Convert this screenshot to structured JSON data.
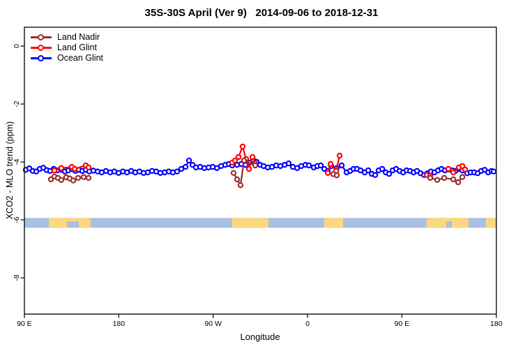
{
  "title": "35S-30S April (Ver 9)   2014-09-06 to 2018-12-31",
  "chart_data": {
    "type": "line",
    "title": "35S-30S April (Ver 9)   2014-09-06 to 2018-12-31",
    "xlabel": "Longitude",
    "ylabel": "XCO2 - MLO trend (ppm)",
    "marker": "open-circle",
    "grid": false,
    "legend_position": "top-left-inside",
    "x_axis": {
      "description": "longitude axis starting at 90E wrapping eastward to 180, 450 degrees total",
      "domain_deg": [
        0,
        450
      ],
      "ticks": [
        {
          "deg": 0,
          "label": "90 E"
        },
        {
          "deg": 90,
          "label": "180"
        },
        {
          "deg": 180,
          "label": "90 W"
        },
        {
          "deg": 270,
          "label": "0"
        },
        {
          "deg": 360,
          "label": "90 E"
        },
        {
          "deg": 450,
          "label": "180"
        }
      ]
    },
    "y_axis": {
      "domain": [
        -9.25,
        0.65
      ],
      "ticks": [
        {
          "value": 0,
          "label": "0"
        },
        {
          "value": -2,
          "label": "-2"
        },
        {
          "value": -4,
          "label": "-4"
        },
        {
          "value": -6,
          "label": "-6"
        },
        {
          "value": -8,
          "label": "-8"
        }
      ]
    },
    "legend": [
      {
        "label": "Land Nadir",
        "color": "#9B2D2D"
      },
      {
        "label": "Land Glint",
        "color": "#FF0000"
      },
      {
        "label": "Ocean Glint",
        "color": "#0000FF"
      }
    ],
    "land_band": {
      "ocean_color": "#A9C0E4",
      "land_color": "#FBD77F",
      "y_top": -5.93,
      "y_bottom": -6.27,
      "land_segments_deg": [
        [
          23.3,
          63.2
        ],
        [
          198.1,
          232.7
        ],
        [
          285.9,
          303.9
        ],
        [
          383.6,
          423.5
        ],
        [
          440.1,
          450
        ]
      ],
      "ocean_notches_deg": [
        [
          40.6,
          51.9
        ],
        [
          402.3,
          407.6
        ]
      ]
    },
    "series": [
      {
        "name": "Land Nadir",
        "color": "#9B2D2D",
        "segments": [
          [
            [
              25.3,
              -4.6
            ],
            [
              28.6,
              -4.5
            ],
            [
              31.9,
              -4.55
            ],
            [
              35.2,
              -4.62
            ],
            [
              39.9,
              -4.53
            ],
            [
              43.2,
              -4.57
            ],
            [
              46.6,
              -4.64
            ],
            [
              51.2,
              -4.55
            ],
            [
              56.5,
              -4.52
            ],
            [
              61.2,
              -4.55
            ]
          ],
          [
            [
              199.5,
              -4.38
            ],
            [
              202.8,
              -4.6
            ],
            [
              206.1,
              -4.8
            ],
            [
              209.5,
              -3.95
            ],
            [
              220.1,
              -4.12
            ]
          ],
          [
            [
              294.6,
              -4.42
            ],
            [
              297.9,
              -4.46
            ]
          ],
          [
            [
              387.0,
              -4.55
            ],
            [
              393.7,
              -4.62
            ],
            [
              400.3,
              -4.55
            ],
            [
              409.0,
              -4.6
            ],
            [
              413.6,
              -4.7
            ],
            [
              417.6,
              -4.52
            ]
          ]
        ]
      },
      {
        "name": "Land Glint",
        "color": "#FF0000",
        "segments": [
          [
            [
              28.6,
              -4.29
            ],
            [
              35.2,
              -4.21
            ],
            [
              45.2,
              -4.17
            ],
            [
              47.9,
              -4.24
            ],
            [
              58.5,
              -4.12
            ],
            [
              61.2,
              -4.19
            ]
          ],
          [
            [
              198.2,
              -4.02
            ],
            [
              200.8,
              -3.95
            ],
            [
              204.2,
              -3.83
            ],
            [
              208.1,
              -3.47
            ],
            [
              211.5,
              -3.9
            ],
            [
              214.1,
              -4.24
            ],
            [
              217.5,
              -3.83
            ],
            [
              220.1,
              -4.05
            ]
          ],
          [
            [
              289.3,
              -4.38
            ],
            [
              292.0,
              -4.07
            ],
            [
              297.3,
              -4.31
            ],
            [
              300.6,
              -3.78
            ]
          ],
          [
            [
              383.7,
              -4.45
            ],
            [
              387.0,
              -4.48
            ]
          ],
          [
            [
              404.3,
              -4.24
            ],
            [
              409.0,
              -4.36
            ],
            [
              414.3,
              -4.19
            ],
            [
              417.6,
              -4.14
            ],
            [
              420.3,
              -4.26
            ]
          ]
        ]
      },
      {
        "name": "Ocean Glint",
        "color": "#0000FF",
        "segments": [
          [
            [
              1.3,
              -4.27
            ],
            [
              4.7,
              -4.22
            ],
            [
              8,
              -4.31
            ],
            [
              11.3,
              -4.33
            ],
            [
              14.6,
              -4.24
            ],
            [
              18,
              -4.2
            ],
            [
              21.3,
              -4.28
            ],
            [
              24.6,
              -4.31
            ],
            [
              27.9,
              -4.24
            ],
            [
              31.3,
              -4.29
            ],
            [
              35.2,
              -4.27
            ],
            [
              38.6,
              -4.33
            ],
            [
              41.9,
              -4.29
            ],
            [
              45.2,
              -4.24
            ],
            [
              48.6,
              -4.31
            ],
            [
              51.9,
              -4.27
            ],
            [
              55.2,
              -4.31
            ],
            [
              58.5,
              -4.27
            ],
            [
              61.9,
              -4.33
            ],
            [
              65.8,
              -4.3
            ],
            [
              69.8,
              -4.33
            ],
            [
              73.8,
              -4.36
            ],
            [
              77.8,
              -4.31
            ],
            [
              81.8,
              -4.36
            ],
            [
              85.8,
              -4.33
            ],
            [
              89.8,
              -4.38
            ],
            [
              93.8,
              -4.33
            ],
            [
              97.8,
              -4.36
            ],
            [
              101.8,
              -4.31
            ],
            [
              105.7,
              -4.36
            ],
            [
              109.7,
              -4.33
            ],
            [
              113.7,
              -4.38
            ],
            [
              117.7,
              -4.36
            ],
            [
              121.7,
              -4.31
            ],
            [
              125.7,
              -4.33
            ],
            [
              129.7,
              -4.38
            ],
            [
              133.7,
              -4.36
            ],
            [
              137.7,
              -4.33
            ],
            [
              141.6,
              -4.36
            ],
            [
              145.6,
              -4.33
            ],
            [
              149.6,
              -4.24
            ],
            [
              153.6,
              -4.17
            ],
            [
              157,
              -3.95
            ],
            [
              160.3,
              -4.1
            ],
            [
              163.6,
              -4.19
            ],
            [
              167.6,
              -4.17
            ],
            [
              171.6,
              -4.21
            ],
            [
              175.6,
              -4.19
            ],
            [
              179.6,
              -4.17
            ],
            [
              183.6,
              -4.21
            ],
            [
              187.6,
              -4.14
            ],
            [
              191.5,
              -4.1
            ],
            [
              194.9,
              -4.07
            ],
            [
              198.2,
              -4.12
            ],
            [
              202.8,
              -4.1
            ],
            [
              206.8,
              -4.07
            ],
            [
              210.8,
              -4.1
            ],
            [
              214.8,
              -4.02
            ],
            [
              218.1,
              -3.93
            ],
            [
              221.5,
              -4
            ],
            [
              224.8,
              -4.1
            ],
            [
              228.1,
              -4.14
            ],
            [
              232.1,
              -4.19
            ],
            [
              236.1,
              -4.17
            ],
            [
              240.1,
              -4.12
            ],
            [
              244.1,
              -4.14
            ],
            [
              248.1,
              -4.1
            ],
            [
              252,
              -4.05
            ],
            [
              256,
              -4.17
            ],
            [
              260,
              -4.21
            ],
            [
              264,
              -4.14
            ],
            [
              268,
              -4.1
            ],
            [
              271.3,
              -4.12
            ],
            [
              276,
              -4.19
            ],
            [
              279.3,
              -4.14
            ],
            [
              282.6,
              -4.12
            ],
            [
              286,
              -4.24
            ],
            [
              289.3,
              -4.31
            ],
            [
              292.6,
              -4.14
            ],
            [
              297.9,
              -4.21
            ],
            [
              302.6,
              -4.12
            ],
            [
              307.2,
              -4.36
            ],
            [
              310.6,
              -4.31
            ],
            [
              313.9,
              -4.24
            ],
            [
              317.2,
              -4.24
            ],
            [
              320.5,
              -4.29
            ],
            [
              324.5,
              -4.36
            ],
            [
              327.9,
              -4.29
            ],
            [
              331.2,
              -4.41
            ],
            [
              334.5,
              -4.45
            ],
            [
              337.8,
              -4.29
            ],
            [
              341.2,
              -4.24
            ],
            [
              344.5,
              -4.36
            ],
            [
              347.8,
              -4.41
            ],
            [
              351.1,
              -4.29
            ],
            [
              354.5,
              -4.24
            ],
            [
              357.8,
              -4.31
            ],
            [
              361.1,
              -4.36
            ],
            [
              364.4,
              -4.29
            ],
            [
              367.8,
              -4.31
            ],
            [
              371.1,
              -4.36
            ],
            [
              374.4,
              -4.31
            ],
            [
              377.7,
              -4.39
            ],
            [
              381.1,
              -4.45
            ],
            [
              384.4,
              -4.39
            ],
            [
              387.7,
              -4.33
            ],
            [
              391,
              -4.36
            ],
            [
              394.4,
              -4.29
            ],
            [
              397.7,
              -4.24
            ],
            [
              401,
              -4.29
            ],
            [
              404.3,
              -4.26
            ],
            [
              407.7,
              -4.29
            ],
            [
              411,
              -4.31
            ],
            [
              414.3,
              -4.24
            ],
            [
              417.6,
              -4.29
            ],
            [
              422.3,
              -4.39
            ],
            [
              425.6,
              -4.36
            ],
            [
              428.9,
              -4.36
            ],
            [
              432.2,
              -4.39
            ],
            [
              435.6,
              -4.31
            ],
            [
              438.9,
              -4.27
            ],
            [
              442.2,
              -4.36
            ],
            [
              445.5,
              -4.31
            ],
            [
              447.5,
              -4.33
            ]
          ]
        ]
      }
    ]
  }
}
